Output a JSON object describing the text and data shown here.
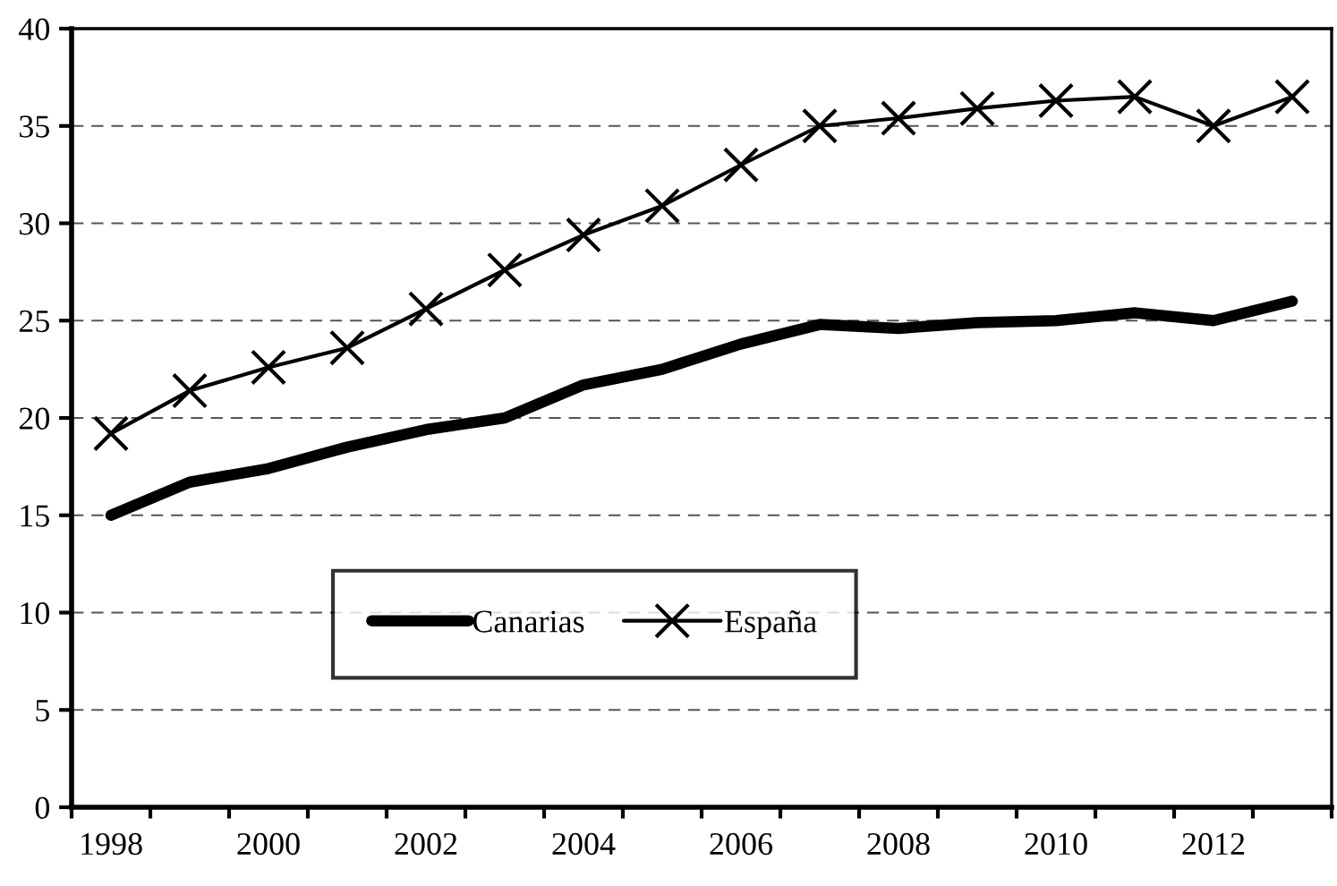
{
  "chart_data": {
    "type": "line",
    "categories": [
      "1998",
      null,
      "2000",
      null,
      "2002",
      null,
      "2004",
      null,
      "2006",
      null,
      "2008",
      null,
      "2010",
      null,
      "2012",
      null
    ],
    "series": [
      {
        "name": "Canarias",
        "color": "#000000",
        "marker": "none",
        "values": [
          15.0,
          16.7,
          17.4,
          18.5,
          19.4,
          20.0,
          21.7,
          22.5,
          23.8,
          24.8,
          24.6,
          24.9,
          25.0,
          25.4,
          25.0,
          26.0
        ]
      },
      {
        "name": "España",
        "color": "#000000",
        "marker": "cross",
        "values": [
          19.2,
          21.4,
          22.6,
          23.6,
          25.6,
          27.6,
          29.4,
          30.9,
          33.0,
          35.0,
          35.4,
          35.9,
          36.3,
          36.5,
          35.0,
          36.5
        ]
      }
    ],
    "ylim": [
      0,
      40
    ],
    "yticks": [
      0,
      5,
      10,
      15,
      20,
      25,
      30,
      35,
      40
    ],
    "grid": "y",
    "legend": "center",
    "line_style": "solid"
  }
}
